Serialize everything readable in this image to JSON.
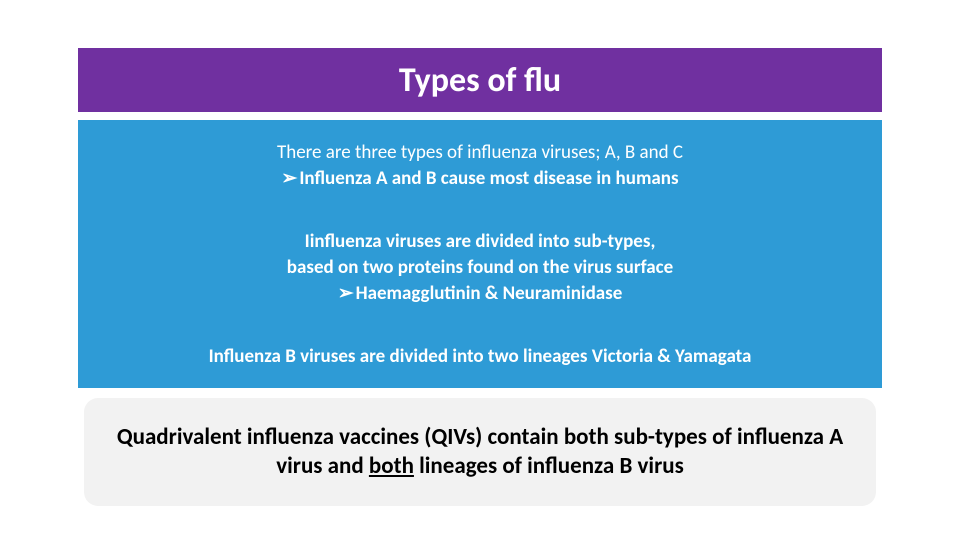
{
  "colors": {
    "purple": "#7030a0",
    "blue": "#2e9bd6",
    "light_gray": "#f2f2f2",
    "white": "#ffffff",
    "black": "#000000"
  },
  "title": "Types of flu",
  "blue": {
    "s1_line1": "There are three types of influenza viruses; A, B and C",
    "s1_bullet": "Influenza A and B cause most disease in humans",
    "s2_line1": "Iinfluenza  viruses are divided into sub-types,",
    "s2_line2": "based on two proteins found on the virus surface",
    "s2_bullet": "Haemagglutinin & Neuraminidase",
    "s3_line1": "Influenza B viruses are divided into two lineages Victoria & Yamagata"
  },
  "bullet_glyph": "➢",
  "white": {
    "part1": "Quadrivalent influenza vaccines (QIVs) contain both sub-types of influenza A virus and ",
    "underlined": "both",
    "part2": " lineages of influenza B virus"
  },
  "typography": {
    "title_fontsize": 34,
    "blue_fontsize": 19,
    "white_fontsize": 23
  }
}
